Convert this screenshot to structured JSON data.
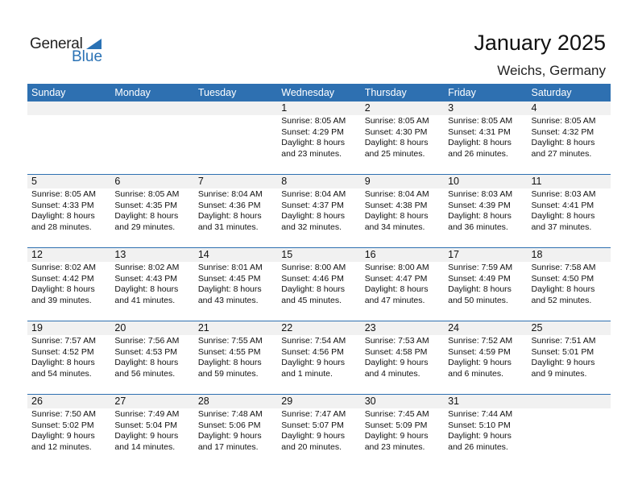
{
  "logo": {
    "general": "General",
    "blue": "Blue"
  },
  "title": "January 2025",
  "location": "Weichs, Germany",
  "colors": {
    "accent": "#2e70b1",
    "day_strip": "#f1f1f1"
  },
  "days_of_week": [
    "Sunday",
    "Monday",
    "Tuesday",
    "Wednesday",
    "Thursday",
    "Friday",
    "Saturday"
  ],
  "weeks": [
    [
      null,
      null,
      null,
      {
        "day": "1",
        "sunrise": "Sunrise: 8:05 AM",
        "sunset": "Sunset: 4:29 PM",
        "daylight1": "Daylight: 8 hours",
        "daylight2": "and 23 minutes."
      },
      {
        "day": "2",
        "sunrise": "Sunrise: 8:05 AM",
        "sunset": "Sunset: 4:30 PM",
        "daylight1": "Daylight: 8 hours",
        "daylight2": "and 25 minutes."
      },
      {
        "day": "3",
        "sunrise": "Sunrise: 8:05 AM",
        "sunset": "Sunset: 4:31 PM",
        "daylight1": "Daylight: 8 hours",
        "daylight2": "and 26 minutes."
      },
      {
        "day": "4",
        "sunrise": "Sunrise: 8:05 AM",
        "sunset": "Sunset: 4:32 PM",
        "daylight1": "Daylight: 8 hours",
        "daylight2": "and 27 minutes."
      }
    ],
    [
      {
        "day": "5",
        "sunrise": "Sunrise: 8:05 AM",
        "sunset": "Sunset: 4:33 PM",
        "daylight1": "Daylight: 8 hours",
        "daylight2": "and 28 minutes."
      },
      {
        "day": "6",
        "sunrise": "Sunrise: 8:05 AM",
        "sunset": "Sunset: 4:35 PM",
        "daylight1": "Daylight: 8 hours",
        "daylight2": "and 29 minutes."
      },
      {
        "day": "7",
        "sunrise": "Sunrise: 8:04 AM",
        "sunset": "Sunset: 4:36 PM",
        "daylight1": "Daylight: 8 hours",
        "daylight2": "and 31 minutes."
      },
      {
        "day": "8",
        "sunrise": "Sunrise: 8:04 AM",
        "sunset": "Sunset: 4:37 PM",
        "daylight1": "Daylight: 8 hours",
        "daylight2": "and 32 minutes."
      },
      {
        "day": "9",
        "sunrise": "Sunrise: 8:04 AM",
        "sunset": "Sunset: 4:38 PM",
        "daylight1": "Daylight: 8 hours",
        "daylight2": "and 34 minutes."
      },
      {
        "day": "10",
        "sunrise": "Sunrise: 8:03 AM",
        "sunset": "Sunset: 4:39 PM",
        "daylight1": "Daylight: 8 hours",
        "daylight2": "and 36 minutes."
      },
      {
        "day": "11",
        "sunrise": "Sunrise: 8:03 AM",
        "sunset": "Sunset: 4:41 PM",
        "daylight1": "Daylight: 8 hours",
        "daylight2": "and 37 minutes."
      }
    ],
    [
      {
        "day": "12",
        "sunrise": "Sunrise: 8:02 AM",
        "sunset": "Sunset: 4:42 PM",
        "daylight1": "Daylight: 8 hours",
        "daylight2": "and 39 minutes."
      },
      {
        "day": "13",
        "sunrise": "Sunrise: 8:02 AM",
        "sunset": "Sunset: 4:43 PM",
        "daylight1": "Daylight: 8 hours",
        "daylight2": "and 41 minutes."
      },
      {
        "day": "14",
        "sunrise": "Sunrise: 8:01 AM",
        "sunset": "Sunset: 4:45 PM",
        "daylight1": "Daylight: 8 hours",
        "daylight2": "and 43 minutes."
      },
      {
        "day": "15",
        "sunrise": "Sunrise: 8:00 AM",
        "sunset": "Sunset: 4:46 PM",
        "daylight1": "Daylight: 8 hours",
        "daylight2": "and 45 minutes."
      },
      {
        "day": "16",
        "sunrise": "Sunrise: 8:00 AM",
        "sunset": "Sunset: 4:47 PM",
        "daylight1": "Daylight: 8 hours",
        "daylight2": "and 47 minutes."
      },
      {
        "day": "17",
        "sunrise": "Sunrise: 7:59 AM",
        "sunset": "Sunset: 4:49 PM",
        "daylight1": "Daylight: 8 hours",
        "daylight2": "and 50 minutes."
      },
      {
        "day": "18",
        "sunrise": "Sunrise: 7:58 AM",
        "sunset": "Sunset: 4:50 PM",
        "daylight1": "Daylight: 8 hours",
        "daylight2": "and 52 minutes."
      }
    ],
    [
      {
        "day": "19",
        "sunrise": "Sunrise: 7:57 AM",
        "sunset": "Sunset: 4:52 PM",
        "daylight1": "Daylight: 8 hours",
        "daylight2": "and 54 minutes."
      },
      {
        "day": "20",
        "sunrise": "Sunrise: 7:56 AM",
        "sunset": "Sunset: 4:53 PM",
        "daylight1": "Daylight: 8 hours",
        "daylight2": "and 56 minutes."
      },
      {
        "day": "21",
        "sunrise": "Sunrise: 7:55 AM",
        "sunset": "Sunset: 4:55 PM",
        "daylight1": "Daylight: 8 hours",
        "daylight2": "and 59 minutes."
      },
      {
        "day": "22",
        "sunrise": "Sunrise: 7:54 AM",
        "sunset": "Sunset: 4:56 PM",
        "daylight1": "Daylight: 9 hours",
        "daylight2": "and 1 minute."
      },
      {
        "day": "23",
        "sunrise": "Sunrise: 7:53 AM",
        "sunset": "Sunset: 4:58 PM",
        "daylight1": "Daylight: 9 hours",
        "daylight2": "and 4 minutes."
      },
      {
        "day": "24",
        "sunrise": "Sunrise: 7:52 AM",
        "sunset": "Sunset: 4:59 PM",
        "daylight1": "Daylight: 9 hours",
        "daylight2": "and 6 minutes."
      },
      {
        "day": "25",
        "sunrise": "Sunrise: 7:51 AM",
        "sunset": "Sunset: 5:01 PM",
        "daylight1": "Daylight: 9 hours",
        "daylight2": "and 9 minutes."
      }
    ],
    [
      {
        "day": "26",
        "sunrise": "Sunrise: 7:50 AM",
        "sunset": "Sunset: 5:02 PM",
        "daylight1": "Daylight: 9 hours",
        "daylight2": "and 12 minutes."
      },
      {
        "day": "27",
        "sunrise": "Sunrise: 7:49 AM",
        "sunset": "Sunset: 5:04 PM",
        "daylight1": "Daylight: 9 hours",
        "daylight2": "and 14 minutes."
      },
      {
        "day": "28",
        "sunrise": "Sunrise: 7:48 AM",
        "sunset": "Sunset: 5:06 PM",
        "daylight1": "Daylight: 9 hours",
        "daylight2": "and 17 minutes."
      },
      {
        "day": "29",
        "sunrise": "Sunrise: 7:47 AM",
        "sunset": "Sunset: 5:07 PM",
        "daylight1": "Daylight: 9 hours",
        "daylight2": "and 20 minutes."
      },
      {
        "day": "30",
        "sunrise": "Sunrise: 7:45 AM",
        "sunset": "Sunset: 5:09 PM",
        "daylight1": "Daylight: 9 hours",
        "daylight2": "and 23 minutes."
      },
      {
        "day": "31",
        "sunrise": "Sunrise: 7:44 AM",
        "sunset": "Sunset: 5:10 PM",
        "daylight1": "Daylight: 9 hours",
        "daylight2": "and 26 minutes."
      },
      null
    ]
  ]
}
